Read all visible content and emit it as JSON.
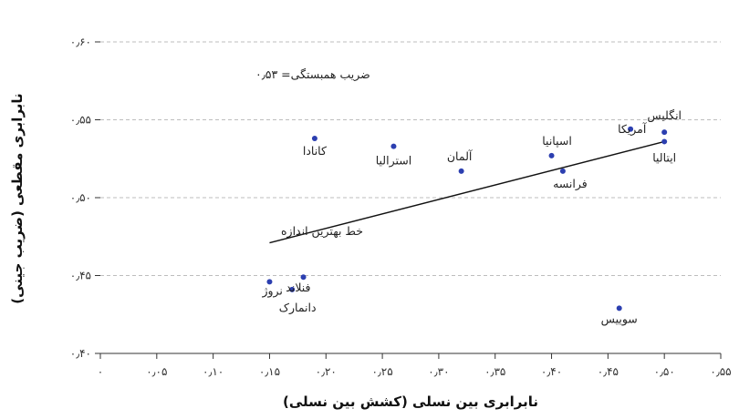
{
  "chart_data": {
    "type": "scatter",
    "xlabel": "نابرابری بین نسلی (کشش بین نسلی)",
    "ylabel": "نابرابری مقطعی (ضریب جینی)",
    "xlim": [
      0,
      0.55
    ],
    "ylim": [
      0.4,
      0.6
    ],
    "grid": "horizontal-dashed",
    "x_ticks": [
      "۰",
      "۰٫۰۵",
      "۰٫۱۰",
      "۰٫۱۵",
      "۰٫۲۰",
      "۰٫۲۵",
      "۰٫۳۰",
      "۰٫۳۵",
      "۰٫۴۰",
      "۰٫۴۵",
      "۰٫۵۰",
      "۰٫۵۵"
    ],
    "y_ticks": [
      "۰٫۴۰",
      "۰٫۴۵",
      "۰٫۵۰",
      "۰٫۵۵",
      "۰٫۶۰"
    ],
    "correlation_note": "ضریب همبستگی= ۰٫۵۳",
    "fit_line": {
      "label": "خط بهترین اندازه",
      "x": [
        0.15,
        0.5
      ],
      "y": [
        0.471,
        0.536
      ]
    },
    "points": [
      {
        "name": "نروژ",
        "x": 0.15,
        "y": 0.446
      },
      {
        "name": "دانمارک",
        "x": 0.17,
        "y": 0.441
      },
      {
        "name": "فنلاند",
        "x": 0.18,
        "y": 0.449
      },
      {
        "name": "کانادا",
        "x": 0.19,
        "y": 0.538
      },
      {
        "name": "استرالیا",
        "x": 0.26,
        "y": 0.533
      },
      {
        "name": "آلمان",
        "x": 0.32,
        "y": 0.517
      },
      {
        "name": "اسپانیا",
        "x": 0.4,
        "y": 0.527
      },
      {
        "name": "فرانسه",
        "x": 0.41,
        "y": 0.517
      },
      {
        "name": "آمریکا",
        "x": 0.47,
        "y": 0.544
      },
      {
        "name": "انگلیس",
        "x": 0.5,
        "y": 0.542
      },
      {
        "name": "ایتالیا",
        "x": 0.5,
        "y": 0.536
      },
      {
        "name": "سوییس",
        "x": 0.46,
        "y": 0.429
      }
    ],
    "point_color": "#2c3fb0"
  }
}
